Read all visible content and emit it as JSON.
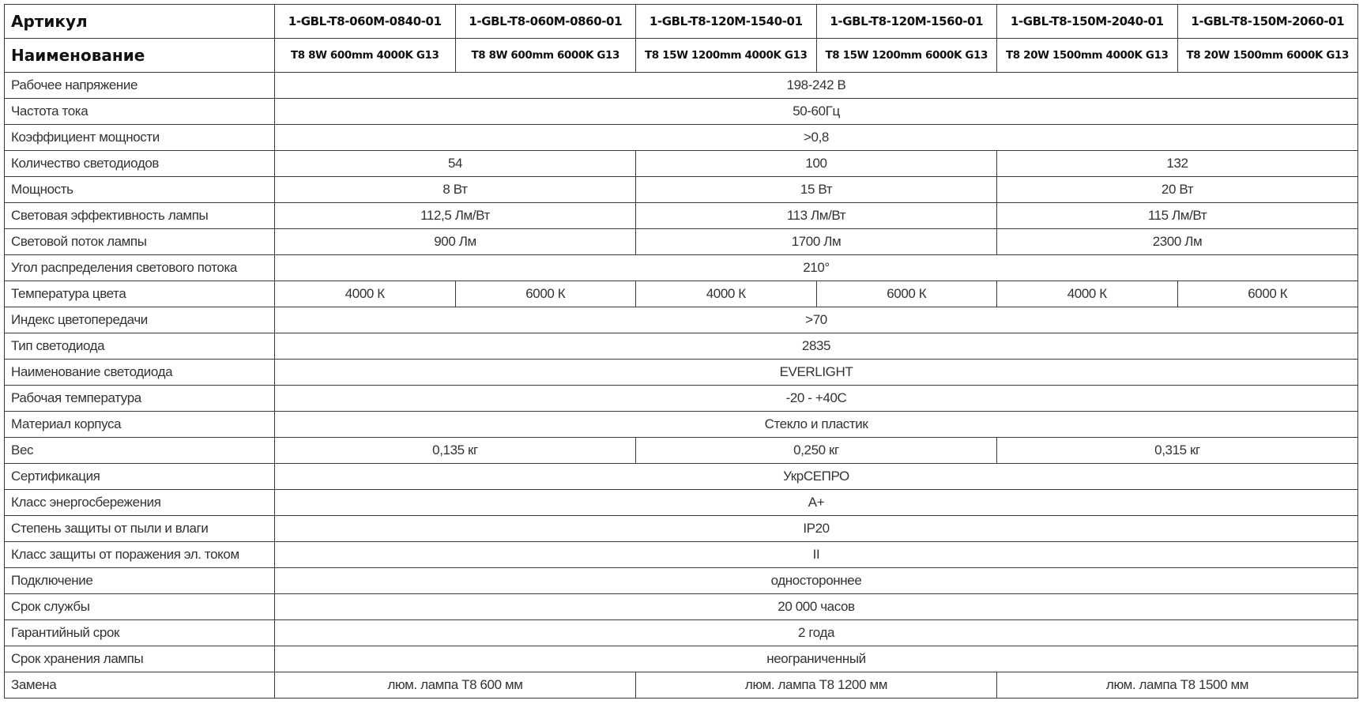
{
  "table": {
    "article_label": "Артикул",
    "name_label": "Наименование",
    "articles": [
      "1-GBL-T8-060M-0840-01",
      "1-GBL-T8-060M-0860-01",
      "1-GBL-T8-120M-1540-01",
      "1-GBL-T8-120M-1560-01",
      "1-GBL-T8-150M-2040-01",
      "1-GBL-T8-150M-2060-01"
    ],
    "names": [
      "T8 8W 600mm 4000K G13",
      "T8 8W 600mm 6000K G13",
      "T8 15W 1200mm 4000K G13",
      "T8 15W 1200mm 6000K G13",
      "T8 20W 1500mm 4000K G13",
      "T8 20W 1500mm 6000K G13"
    ],
    "rows": [
      {
        "label": "Рабочее напряжение",
        "cells": [
          {
            "text": "198-242 В",
            "span": 6
          }
        ]
      },
      {
        "label": "Частота тока",
        "cells": [
          {
            "text": "50-60Гц",
            "span": 6
          }
        ]
      },
      {
        "label": "Коэффициент мощности",
        "cells": [
          {
            "text": ">0,8",
            "span": 6
          }
        ]
      },
      {
        "label": "Количество светодиодов",
        "cells": [
          {
            "text": "54",
            "span": 2
          },
          {
            "text": "100",
            "span": 2
          },
          {
            "text": "132",
            "span": 2
          }
        ]
      },
      {
        "label": "Мощность",
        "cells": [
          {
            "text": "8 Вт",
            "span": 2
          },
          {
            "text": "15 Вт",
            "span": 2
          },
          {
            "text": "20 Вт",
            "span": 2
          }
        ]
      },
      {
        "label": "Световая эффективность лампы",
        "cells": [
          {
            "text": "112,5 Лм/Вт",
            "span": 2
          },
          {
            "text": "113 Лм/Вт",
            "span": 2
          },
          {
            "text": "115 Лм/Вт",
            "span": 2
          }
        ]
      },
      {
        "label": "Световой поток лампы",
        "cells": [
          {
            "text": "900 Лм",
            "span": 2
          },
          {
            "text": "1700 Лм",
            "span": 2
          },
          {
            "text": "2300 Лм",
            "span": 2
          }
        ]
      },
      {
        "label": "Угол распределения светового потока",
        "cells": [
          {
            "text": "210°",
            "span": 6
          }
        ]
      },
      {
        "label": "Температура цвета",
        "cells": [
          {
            "text": "4000 К",
            "span": 1
          },
          {
            "text": "6000 К",
            "span": 1
          },
          {
            "text": "4000 К",
            "span": 1
          },
          {
            "text": "6000 К",
            "span": 1
          },
          {
            "text": "4000 К",
            "span": 1
          },
          {
            "text": "6000 К",
            "span": 1
          }
        ]
      },
      {
        "label": "Индекс цветопередачи",
        "cells": [
          {
            "text": ">70",
            "span": 6
          }
        ]
      },
      {
        "label": "Тип светодиода",
        "cells": [
          {
            "text": "2835",
            "span": 6
          }
        ]
      },
      {
        "label": "Наименование светодиода",
        "cells": [
          {
            "text": "EVERLIGHT",
            "span": 6
          }
        ]
      },
      {
        "label": "Рабочая температура",
        "cells": [
          {
            "text": "-20 - +40С",
            "span": 6
          }
        ]
      },
      {
        "label": "Материал корпуса",
        "cells": [
          {
            "text": "Стекло и пластик",
            "span": 6
          }
        ]
      },
      {
        "label": "Вес",
        "cells": [
          {
            "text": "0,135 кг",
            "span": 2
          },
          {
            "text": "0,250 кг",
            "span": 2
          },
          {
            "text": "0,315 кг",
            "span": 2
          }
        ]
      },
      {
        "label": "Сертификация",
        "cells": [
          {
            "text": "УкрСЕПРО",
            "span": 6
          }
        ]
      },
      {
        "label": "Класс энергосбережения",
        "cells": [
          {
            "text": "А+",
            "span": 6
          }
        ]
      },
      {
        "label": "Степень защиты от пыли и влаги",
        "cells": [
          {
            "text": "IP20",
            "span": 6
          }
        ]
      },
      {
        "label": "Класс защиты от поражения эл. током",
        "cells": [
          {
            "text": "II",
            "span": 6
          }
        ]
      },
      {
        "label": "Подключение",
        "cells": [
          {
            "text": "одностороннее",
            "span": 6
          }
        ]
      },
      {
        "label": "Срок службы",
        "cells": [
          {
            "text": "20 000 часов",
            "span": 6
          }
        ]
      },
      {
        "label": "Гарантийный срок",
        "cells": [
          {
            "text": "2 года",
            "span": 6
          }
        ]
      },
      {
        "label": "Срок хранения лампы",
        "cells": [
          {
            "text": "неограниченный",
            "span": 6
          }
        ]
      },
      {
        "label": "Замена",
        "cells": [
          {
            "text": "люм. лампа Т8 600 мм",
            "span": 2
          },
          {
            "text": "люм. лампа Т8 1200 мм",
            "span": 2
          },
          {
            "text": "люм. лампа Т8 1500 мм",
            "span": 2
          }
        ]
      }
    ]
  }
}
